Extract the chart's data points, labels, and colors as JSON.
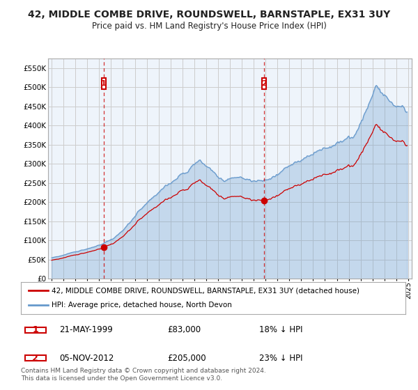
{
  "title": "42, MIDDLE COMBE DRIVE, ROUNDSWELL, BARNSTAPLE, EX31 3UY",
  "subtitle": "Price paid vs. HM Land Registry's House Price Index (HPI)",
  "ylim": [
    0,
    575000
  ],
  "xlim_start": 1994.7,
  "xlim_end": 2025.3,
  "sale1_date": 1999.388,
  "sale1_price": 83000,
  "sale1_label": "21-MAY-1999",
  "sale1_hpi_pct": "18% ↓ HPI",
  "sale2_date": 2012.844,
  "sale2_price": 205000,
  "sale2_label": "05-NOV-2012",
  "sale2_hpi_pct": "23% ↓ HPI",
  "line_color_red": "#CC0000",
  "line_color_blue": "#6699CC",
  "fill_color_blue": "#ddeeff",
  "legend_label_red": "42, MIDDLE COMBE DRIVE, ROUNDSWELL, BARNSTAPLE, EX31 3UY (detached house)",
  "legend_label_blue": "HPI: Average price, detached house, North Devon",
  "footnote": "Contains HM Land Registry data © Crown copyright and database right 2024.\nThis data is licensed under the Open Government Licence v3.0.",
  "background_color": "#ffffff",
  "chart_bg_color": "#eef4fb",
  "grid_color": "#cccccc",
  "title_fontsize": 10,
  "subtitle_fontsize": 8.5,
  "tick_fontsize": 7.5,
  "legend_fontsize": 7.5
}
